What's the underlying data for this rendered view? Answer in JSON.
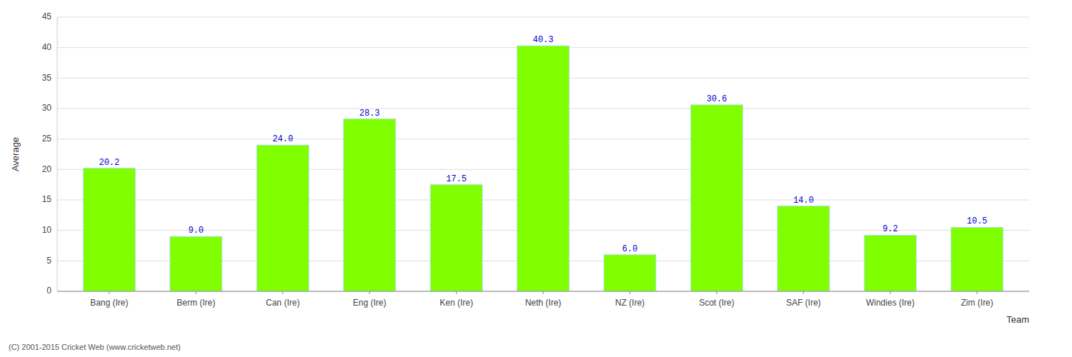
{
  "chart_data": {
    "type": "bar",
    "categories": [
      "Bang (Ire)",
      "Berm (Ire)",
      "Can (Ire)",
      "Eng (Ire)",
      "Ken (Ire)",
      "Neth (Ire)",
      "NZ (Ire)",
      "Scot (Ire)",
      "SAF (Ire)",
      "Windies (Ire)",
      "Zim (Ire)"
    ],
    "values": [
      20.2,
      9.0,
      24.0,
      28.3,
      17.5,
      40.3,
      6.0,
      30.6,
      14.0,
      9.2,
      10.5
    ],
    "value_labels": [
      "20.2",
      "9.0",
      "24.0",
      "28.3",
      "17.5",
      "40.3",
      "6.0",
      "30.6",
      "14.0",
      "9.2",
      "10.5"
    ],
    "data_labels": true,
    "color": "#7fff00",
    "xlabel": "Team",
    "ylabel": "Average",
    "ylim": [
      0,
      45
    ],
    "yticks": [
      0,
      5,
      10,
      15,
      20,
      25,
      30,
      35,
      40,
      45
    ],
    "grid": true,
    "annotations": [
      "(C) 2001-2015 Cricket Web (www.cricketweb.net)"
    ]
  }
}
